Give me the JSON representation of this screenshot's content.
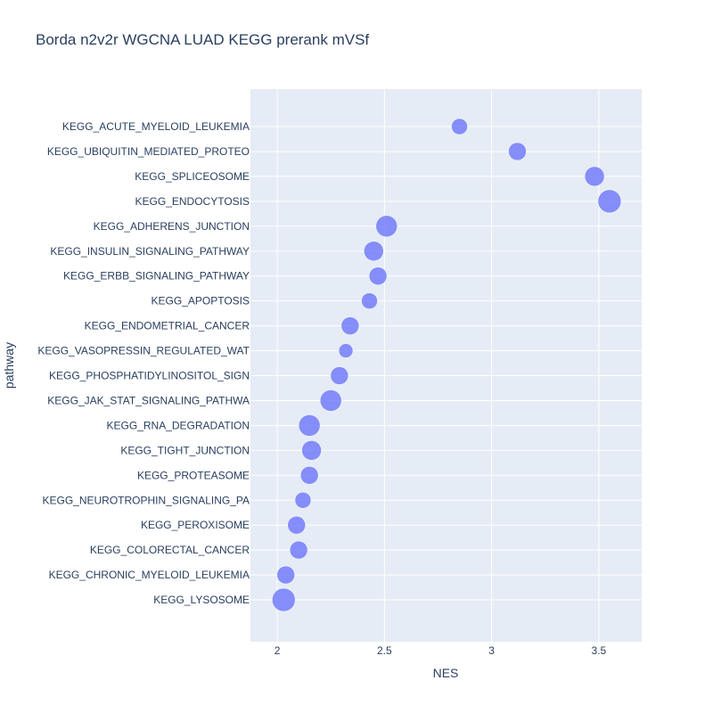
{
  "chart_data": {
    "type": "scatter",
    "title": "Borda n2v2r WGCNA LUAD KEGG prerank mVSf",
    "xlabel": "NES",
    "ylabel": "pathway",
    "xlim": [
      1.875,
      3.7
    ],
    "x_ticks": [
      2,
      2.5,
      3,
      3.5
    ],
    "x_tick_labels": [
      "2",
      "2.5",
      "3",
      "3.5"
    ],
    "grid": true,
    "marker_color": "#636efa",
    "plot_bg": "#e5ecf6",
    "categories": [
      "KEGG_ACUTE_MYELOID_LEUKEMIA",
      "KEGG_UBIQUITIN_MEDIATED_PROTEO",
      "KEGG_SPLICEOSOME",
      "KEGG_ENDOCYTOSIS",
      "KEGG_ADHERENS_JUNCTION",
      "KEGG_INSULIN_SIGNALING_PATHWAY",
      "KEGG_ERBB_SIGNALING_PATHWAY",
      "KEGG_APOPTOSIS",
      "KEGG_ENDOMETRIAL_CANCER",
      "KEGG_VASOPRESSIN_REGULATED_WAT",
      "KEGG_PHOSPHATIDYLINOSITOL_SIGN",
      "KEGG_JAK_STAT_SIGNALING_PATHWA",
      "KEGG_RNA_DEGRADATION",
      "KEGG_TIGHT_JUNCTION",
      "KEGG_PROTEASOME",
      "KEGG_NEUROTROPHIN_SIGNALING_PA",
      "KEGG_PEROXISOME",
      "KEGG_COLORECTAL_CANCER",
      "KEGG_CHRONIC_MYELOID_LEUKEMIA",
      "KEGG_LYSOSOME"
    ],
    "x": [
      2.85,
      3.12,
      3.48,
      3.55,
      2.51,
      2.45,
      2.47,
      2.43,
      2.34,
      2.32,
      2.29,
      2.25,
      2.15,
      2.16,
      2.15,
      2.12,
      2.09,
      2.1,
      2.04,
      2.03
    ],
    "marker_size": [
      9,
      10,
      11,
      13,
      12,
      11,
      10,
      9,
      10,
      8,
      10,
      12,
      12,
      11,
      10,
      9,
      10,
      10,
      10,
      13
    ]
  }
}
